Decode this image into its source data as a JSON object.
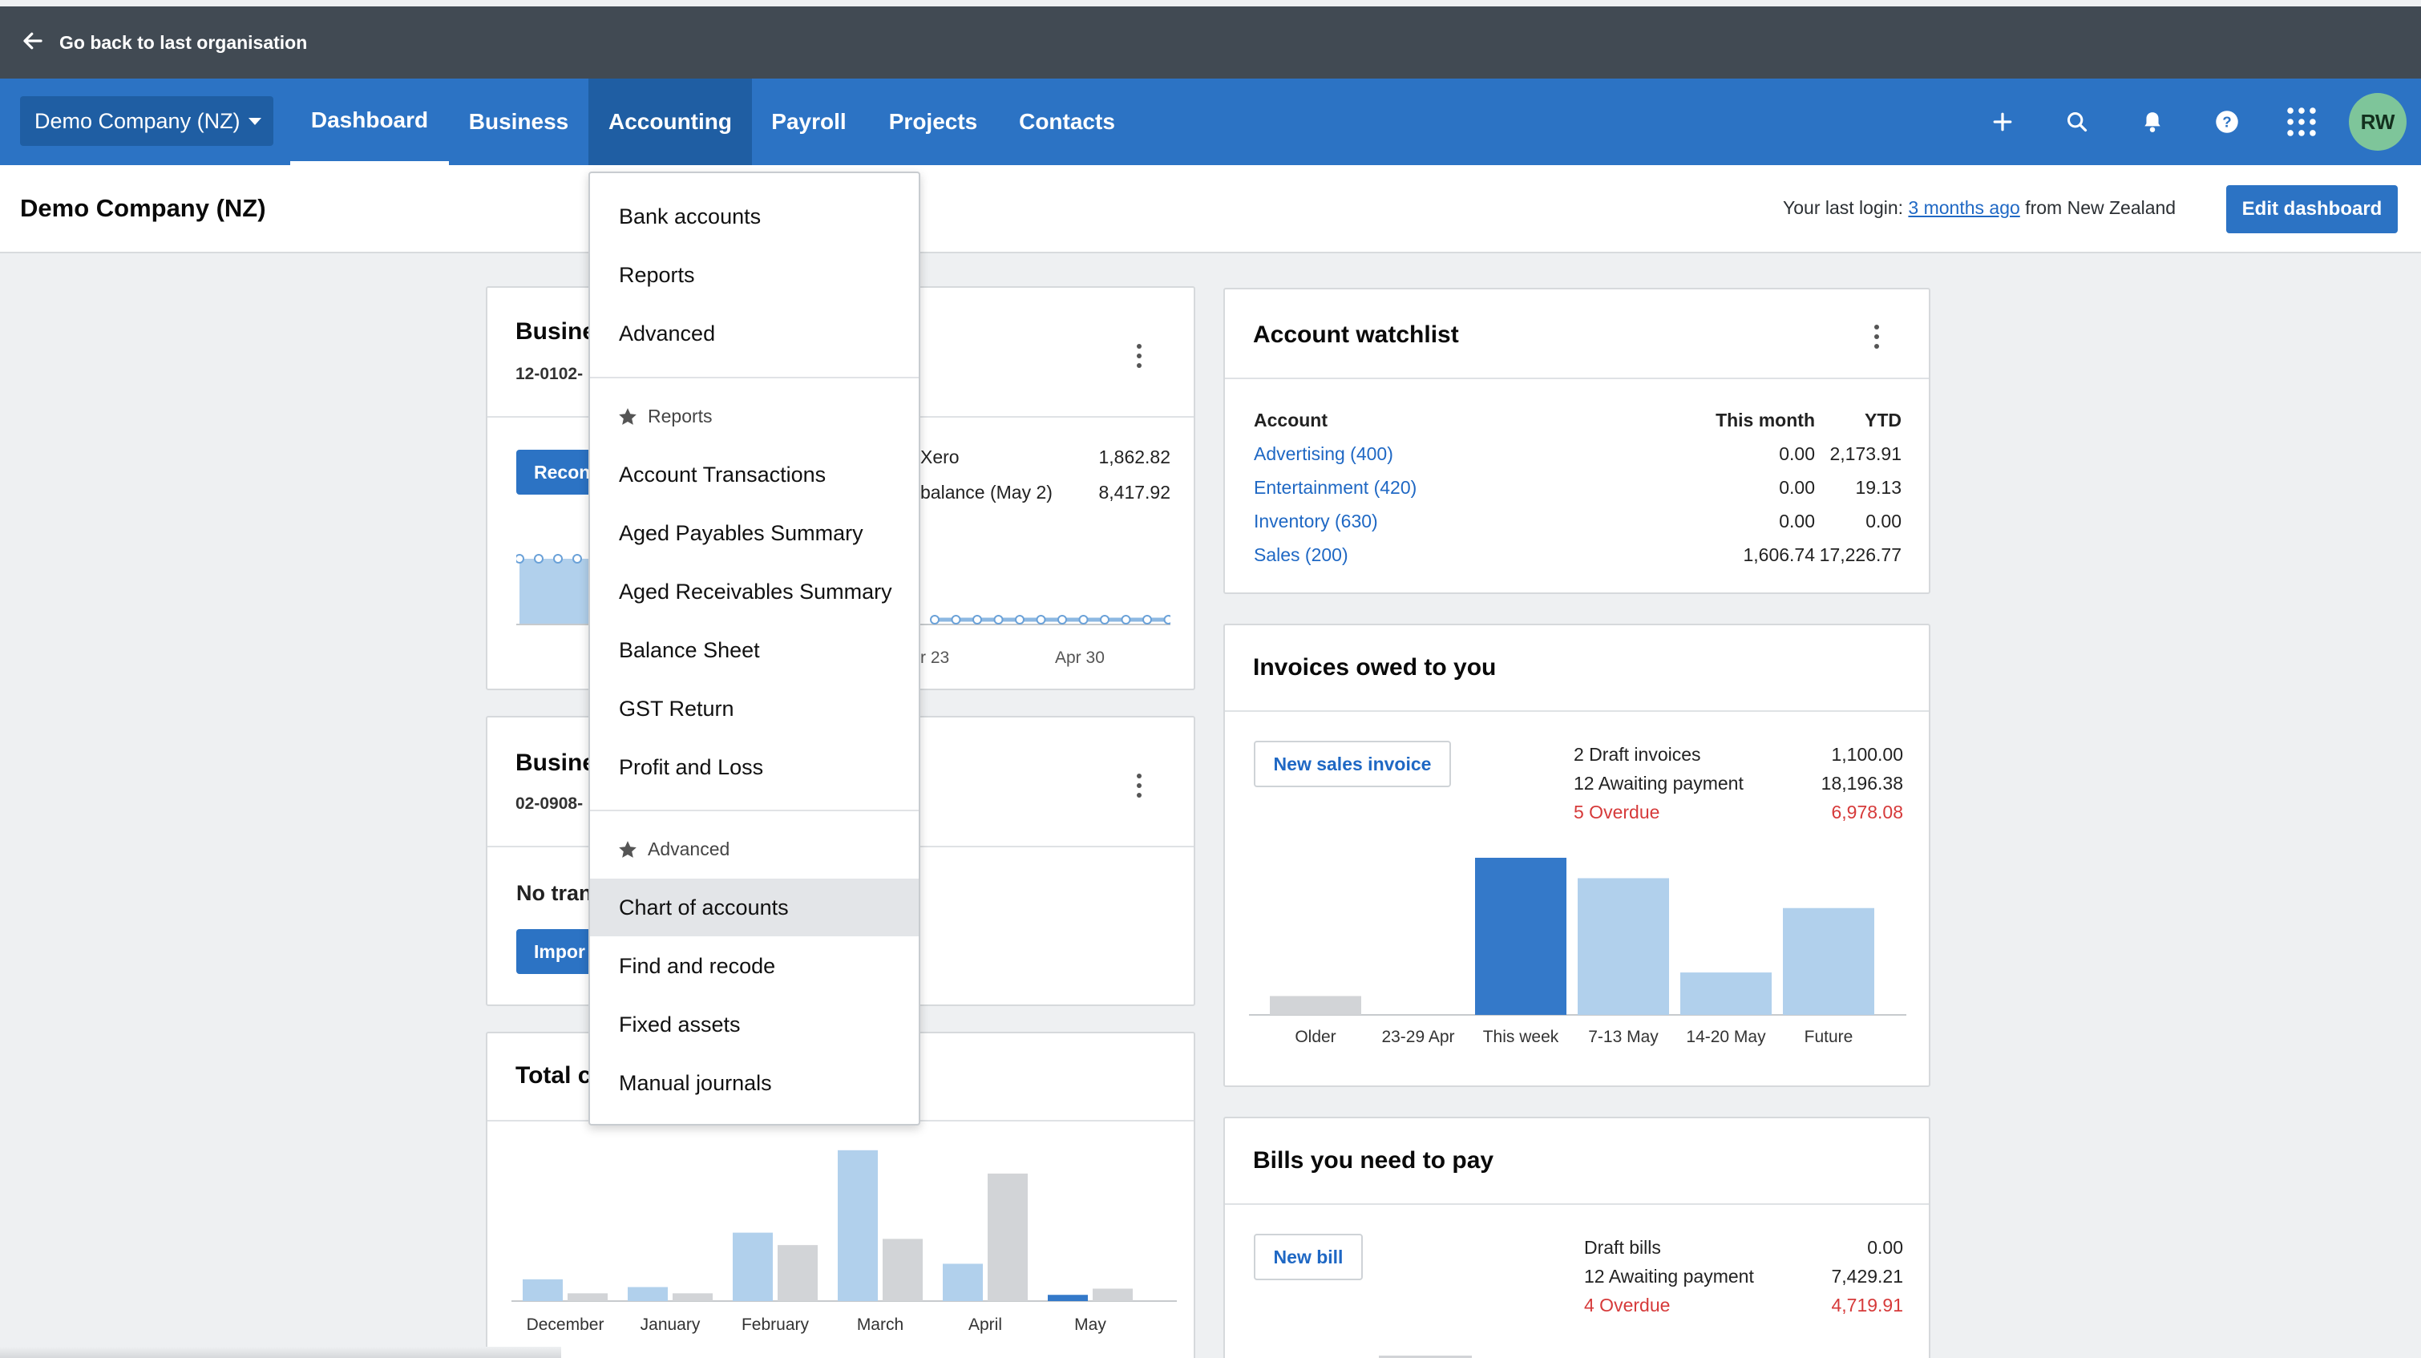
{
  "topbar": {
    "back_label": "Go back to last organisation"
  },
  "nav": {
    "org_name": "Demo Company (NZ)",
    "tabs": [
      "Dashboard",
      "Business",
      "Accounting",
      "Payroll",
      "Projects",
      "Contacts"
    ],
    "avatar_initials": "RW"
  },
  "subheader": {
    "title": "Demo Company (NZ)",
    "login_prefix": "Your last login:",
    "login_link": "3 months ago",
    "login_suffix": "from New Zealand",
    "edit_button": "Edit dashboard"
  },
  "bank1": {
    "title": "Busine",
    "account": "12-0102-",
    "reconcile_button": "Recon",
    "rows": [
      {
        "label": "Xero",
        "value": "1,862.82"
      },
      {
        "label": "balance (May 2)",
        "value": "8,417.92"
      }
    ],
    "xlabels": [
      "r 23",
      "Apr 30"
    ]
  },
  "bank2": {
    "title": "Busine",
    "account": "02-0908-",
    "no_trans": "No tran",
    "import_button": "Impor"
  },
  "total": {
    "title": "Total c",
    "chart_data": {
      "type": "bar",
      "categories": [
        "December",
        "January",
        "February",
        "March",
        "April",
        "May"
      ],
      "series": [
        {
          "values": [
            14,
            9,
            44,
            97,
            24,
            4
          ]
        },
        {
          "values": [
            5,
            5,
            36,
            40,
            82,
            8
          ]
        }
      ]
    }
  },
  "watchlist": {
    "title": "Account watchlist",
    "headers": [
      "Account",
      "This month",
      "YTD"
    ],
    "rows": [
      {
        "account": "Advertising (400)",
        "month": "0.00",
        "ytd": "2,173.91"
      },
      {
        "account": "Entertainment (420)",
        "month": "0.00",
        "ytd": "19.13"
      },
      {
        "account": "Inventory (630)",
        "month": "0.00",
        "ytd": "0.00"
      },
      {
        "account": "Sales (200)",
        "month": "1,606.74",
        "ytd": "17,226.77"
      }
    ]
  },
  "invoices": {
    "title": "Invoices owed to you",
    "new_button": "New sales invoice",
    "stats": [
      {
        "label": "2 Draft invoices",
        "value": "1,100.00",
        "overdue": false
      },
      {
        "label": "12 Awaiting payment",
        "value": "18,196.38",
        "overdue": false
      },
      {
        "label": "5 Overdue",
        "value": "6,978.08",
        "overdue": true
      }
    ],
    "chart_data": {
      "type": "bar",
      "categories": [
        "Older",
        "23-29 Apr",
        "This week",
        "7-13 May",
        "14-20 May",
        "Future"
      ],
      "values": [
        12,
        0,
        100,
        87,
        27,
        68
      ],
      "colors": [
        "#d2d4d7",
        "#d2d4d7",
        "#3479c9",
        "#b1d0ec",
        "#b1d0ec",
        "#b1d0ec"
      ]
    }
  },
  "bills": {
    "title": "Bills you need to pay",
    "new_button": "New bill",
    "stats": [
      {
        "label": "Draft bills",
        "value": "0.00",
        "overdue": false
      },
      {
        "label": "12 Awaiting payment",
        "value": "7,429.21",
        "overdue": false
      },
      {
        "label": "4 Overdue",
        "value": "4,719.91",
        "overdue": true
      }
    ]
  },
  "menu": {
    "top_items": [
      "Bank accounts",
      "Reports",
      "Advanced"
    ],
    "reports_heading": "Reports",
    "report_items": [
      "Account Transactions",
      "Aged Payables Summary",
      "Aged Receivables Summary",
      "Balance Sheet",
      "GST Return",
      "Profit and Loss"
    ],
    "advanced_heading": "Advanced",
    "advanced_items": [
      "Chart of accounts",
      "Find and recode",
      "Fixed assets",
      "Manual journals"
    ],
    "highlighted": "Chart of accounts"
  }
}
